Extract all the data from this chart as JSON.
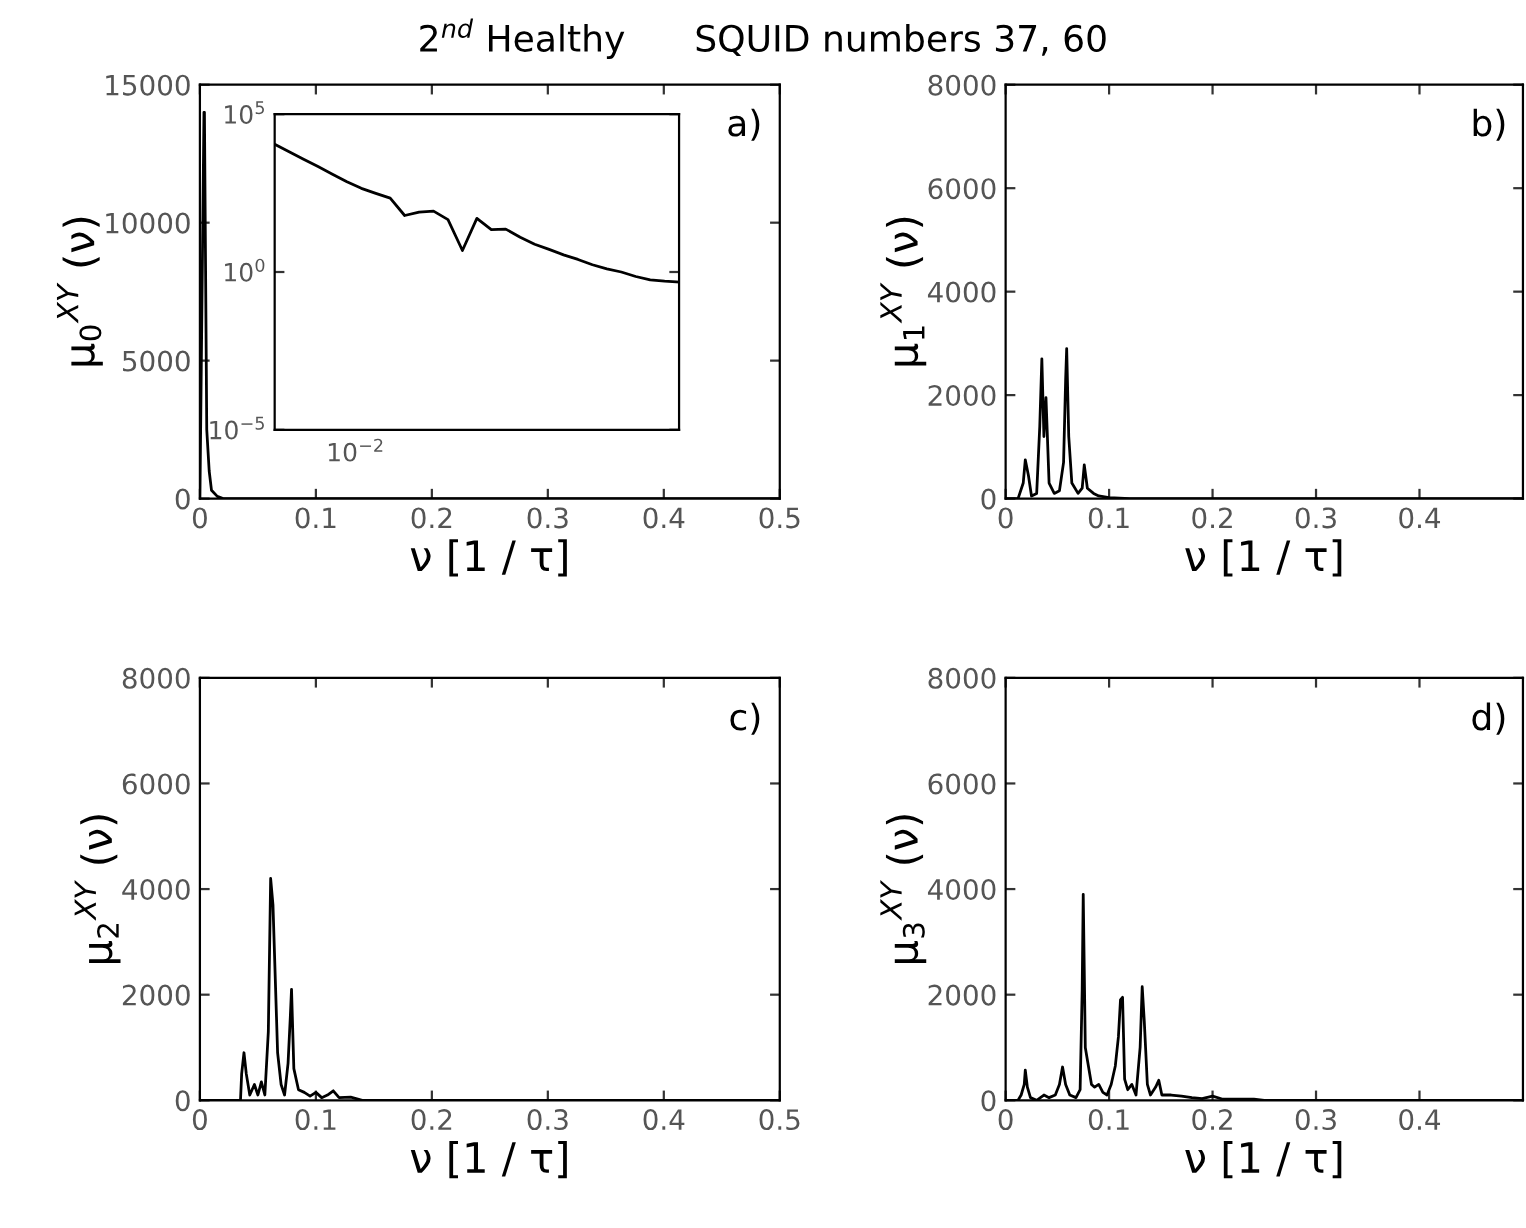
{
  "chart_data": [
    {
      "type": "line",
      "title": "2$^{nd}$ Healthy      SQUID numbers 37, 60",
      "xlabel": "ν [1 / τ]",
      "ylabel": "μ$_{0}$$^{XY}$ (ν)",
      "color": "#000000",
      "line_style": "solid",
      "grid": false,
      "annotations": [
        "a)"
      ],
      "x": [
        0,
        0.0035,
        0.0039,
        0.0059,
        0.008,
        0.01,
        0.015,
        0.02,
        0.5
      ],
      "values": [
        0,
        14000,
        14000,
        2500,
        1000,
        300,
        80,
        0,
        0
      ],
      "xlim": [
        0,
        0.5
      ],
      "ylim": [
        0,
        15000
      ],
      "xticks": [
        0,
        0.1,
        0.2,
        0.3,
        0.4,
        0.5
      ],
      "yticks": [
        0,
        5000,
        10000,
        15000
      ]
    },
    {
      "type": "line",
      "log": "y",
      "color": "#000000",
      "line_style": "solid",
      "grid": false,
      "annotations": [
        "10$^{−2}$"
      ],
      "categories": [
        null,
        null,
        null,
        null,
        null,
        null,
        null,
        null,
        null,
        null,
        null,
        null,
        null,
        null,
        null,
        null,
        null,
        null,
        null,
        null,
        null,
        null,
        null,
        null,
        null,
        null,
        null,
        null,
        null
      ],
      "values": [
        11220,
        6460,
        3720,
        2190,
        1260,
        724,
        447,
        309,
        219,
        61.7,
        79.4,
        85.1,
        45.7,
        4.8,
        50.1,
        21.9,
        22.9,
        12.6,
        7.6,
        5.2,
        3.5,
        2.5,
        1.7,
        1.26,
        1.0,
        0.72,
        0.56,
        0.51,
        0.48
      ],
      "ylim": [
        1e-05,
        100000
      ],
      "yticks": [
        {
          "value": 1e-05,
          "label": "10$^{−5}$"
        },
        {
          "value": 1,
          "label": "10$^{0}$"
        },
        {
          "value": 100000,
          "label": "10$^{5}$"
        }
      ]
    },
    {
      "type": "line",
      "xlabel": "ν [1 / τ]",
      "ylabel": "μ$_{1}$$^{XY}$ (ν)",
      "color": "#000000",
      "line_style": "solid",
      "grid": false,
      "annotations": [
        "b)"
      ],
      "x": [
        0,
        0.012,
        0.017,
        0.019,
        0.022,
        0.025,
        0.03,
        0.033,
        0.035,
        0.037,
        0.039,
        0.042,
        0.047,
        0.052,
        0.056,
        0.058,
        0.059,
        0.061,
        0.064,
        0.07,
        0.074,
        0.076,
        0.079,
        0.085,
        0.09,
        0.1,
        0.12,
        0.5
      ],
      "values": [
        0,
        0,
        300,
        750,
        450,
        50,
        100,
        1400,
        2700,
        1200,
        1950,
        300,
        100,
        150,
        700,
        2300,
        2900,
        1200,
        300,
        100,
        200,
        650,
        200,
        100,
        50,
        20,
        0,
        0
      ],
      "xlim": [
        0,
        0.5
      ],
      "ylim": [
        0,
        8000
      ],
      "xticks": [
        0,
        0.1,
        0.2,
        0.3,
        0.4
      ],
      "yticks": [
        0,
        2000,
        4000,
        6000,
        8000
      ]
    },
    {
      "type": "line",
      "xlabel": "ν [1 / τ]",
      "ylabel": "μ$_{2}$$^{XY}$ (ν)",
      "color": "#000000",
      "line_style": "solid",
      "grid": false,
      "annotations": [
        "c)"
      ],
      "x": [
        0,
        0.035,
        0.036,
        0.038,
        0.04,
        0.043,
        0.047,
        0.05,
        0.053,
        0.056,
        0.059,
        0.061,
        0.063,
        0.065,
        0.067,
        0.07,
        0.073,
        0.076,
        0.078,
        0.079,
        0.081,
        0.085,
        0.09,
        0.095,
        0.1,
        0.105,
        0.11,
        0.115,
        0.12,
        0.13,
        0.14,
        0.5
      ],
      "values": [
        0,
        0,
        500,
        900,
        500,
        100,
        300,
        100,
        350,
        100,
        1300,
        4200,
        3700,
        2300,
        900,
        300,
        100,
        700,
        1600,
        2100,
        600,
        200,
        150,
        80,
        150,
        50,
        100,
        180,
        50,
        60,
        0,
        0
      ],
      "xlim": [
        0,
        0.5
      ],
      "ylim": [
        0,
        8000
      ],
      "xticks": [
        0,
        0.1,
        0.2,
        0.3,
        0.4,
        0.5
      ],
      "yticks": [
        0,
        2000,
        4000,
        6000,
        8000
      ]
    },
    {
      "type": "line",
      "xlabel": "ν [1 / τ]",
      "ylabel": "μ$_{3}$$^{XY}$ (ν)",
      "color": "#000000",
      "line_style": "solid",
      "grid": false,
      "annotations": [
        "d)"
      ],
      "x": [
        0,
        0.012,
        0.015,
        0.018,
        0.019,
        0.021,
        0.024,
        0.03,
        0.037,
        0.042,
        0.048,
        0.052,
        0.055,
        0.058,
        0.062,
        0.068,
        0.072,
        0.074,
        0.075,
        0.077,
        0.08,
        0.083,
        0.086,
        0.09,
        0.094,
        0.098,
        0.102,
        0.106,
        0.109,
        0.111,
        0.113,
        0.115,
        0.118,
        0.122,
        0.126,
        0.13,
        0.132,
        0.134,
        0.137,
        0.14,
        0.145,
        0.148,
        0.151,
        0.16,
        0.17,
        0.18,
        0.19,
        0.2,
        0.21,
        0.24,
        0.25,
        0.5
      ],
      "values": [
        0,
        0,
        100,
        300,
        570,
        250,
        50,
        0,
        100,
        50,
        100,
        300,
        630,
        300,
        100,
        50,
        200,
        2100,
        3900,
        1000,
        650,
        300,
        250,
        300,
        150,
        100,
        300,
        650,
        1200,
        1900,
        1950,
        400,
        200,
        300,
        100,
        1000,
        2150,
        1500,
        300,
        100,
        250,
        380,
        100,
        100,
        80,
        50,
        30,
        80,
        20,
        20,
        0,
        0
      ],
      "xlim": [
        0,
        0.5
      ],
      "ylim": [
        0,
        8000
      ],
      "xticks": [
        0,
        0.1,
        0.2,
        0.3,
        0.4
      ],
      "yticks": [
        0,
        2000,
        4000,
        6000,
        8000
      ]
    }
  ]
}
